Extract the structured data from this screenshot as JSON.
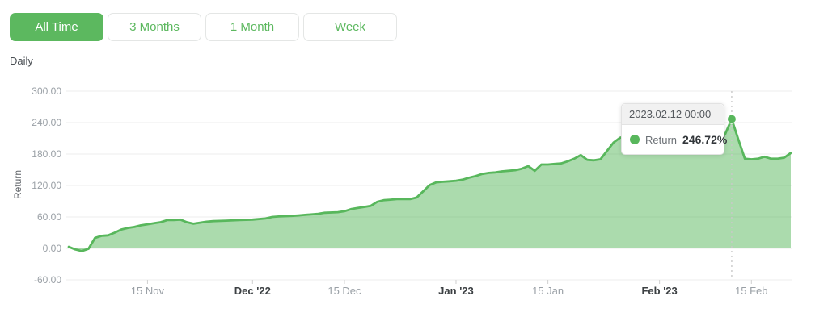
{
  "time_range_tabs": [
    {
      "label": "All Time",
      "active": true
    },
    {
      "label": "3 Months",
      "active": false
    },
    {
      "label": "1 Month",
      "active": false
    },
    {
      "label": "Week",
      "active": false
    }
  ],
  "frequency_label": "Daily",
  "tooltip": {
    "header": "2023.02.12 00:00",
    "series_label": "Return",
    "value": "246.72%"
  },
  "colors": {
    "accent": "#5cb85f",
    "line": "#58b75c",
    "fill": "rgba(88,183,92,0.5)",
    "grid": "#ececec",
    "tick": "#d0d0d0",
    "crosshair": "#c9c9c9",
    "axis_text": "#9aa0a6",
    "axis_text_emphasis": "#3c4043"
  },
  "chart_data": {
    "type": "area",
    "title": "",
    "xlabel": "",
    "ylabel": "Return",
    "series_name": "Return",
    "unit": "%",
    "frequency": "Daily",
    "start_date": "2022-11-03",
    "end_date": "2023-02-21",
    "x_unit": "day_offset_from_start_date",
    "x_range_days": 110,
    "ylim": [
      -60,
      300
    ],
    "grid": "horizontal",
    "legend": "none",
    "y_ticks": [
      {
        "value": 300,
        "label": "300.00"
      },
      {
        "value": 240,
        "label": "240.00"
      },
      {
        "value": 180,
        "label": "180.00"
      },
      {
        "value": 120,
        "label": "120.00"
      },
      {
        "value": 60,
        "label": "60.00"
      },
      {
        "value": 0,
        "label": "0.00"
      },
      {
        "value": -60,
        "label": "-60.00"
      }
    ],
    "x_axis_labels": [
      {
        "label": "15 Nov",
        "day": 12,
        "emphasis": false
      },
      {
        "label": "Dec '22",
        "day": 28,
        "emphasis": true
      },
      {
        "label": "15 Dec",
        "day": 42,
        "emphasis": false
      },
      {
        "label": "Jan '23",
        "day": 59,
        "emphasis": true
      },
      {
        "label": "15 Jan",
        "day": 73,
        "emphasis": false
      },
      {
        "label": "Feb '23",
        "day": 90,
        "emphasis": true
      },
      {
        "label": "15 Feb",
        "day": 104,
        "emphasis": false
      }
    ],
    "points": [
      [
        0,
        3
      ],
      [
        1,
        -2
      ],
      [
        2,
        -5
      ],
      [
        3,
        -1
      ],
      [
        4,
        20
      ],
      [
        5,
        24
      ],
      [
        6,
        25
      ],
      [
        7,
        30
      ],
      [
        8,
        36
      ],
      [
        9,
        39
      ],
      [
        10,
        41
      ],
      [
        11,
        44
      ],
      [
        12,
        46
      ],
      [
        13,
        48
      ],
      [
        14,
        50
      ],
      [
        15,
        54
      ],
      [
        16,
        54
      ],
      [
        17,
        55
      ],
      [
        18,
        50
      ],
      [
        19,
        47
      ],
      [
        20,
        49
      ],
      [
        21,
        51
      ],
      [
        22,
        52
      ],
      [
        24,
        53
      ],
      [
        26,
        54
      ],
      [
        28,
        55
      ],
      [
        30,
        57
      ],
      [
        31,
        60
      ],
      [
        32,
        61
      ],
      [
        34,
        62
      ],
      [
        35,
        63
      ],
      [
        36,
        64
      ],
      [
        38,
        66
      ],
      [
        39,
        68
      ],
      [
        41,
        69
      ],
      [
        42,
        71
      ],
      [
        43,
        75
      ],
      [
        44,
        77
      ],
      [
        45,
        79
      ],
      [
        46,
        81
      ],
      [
        47,
        89
      ],
      [
        48,
        92
      ],
      [
        49,
        93
      ],
      [
        50,
        94
      ],
      [
        52,
        94
      ],
      [
        53,
        97
      ],
      [
        54,
        109
      ],
      [
        55,
        121
      ],
      [
        56,
        126
      ],
      [
        57,
        127
      ],
      [
        58,
        128
      ],
      [
        59,
        129
      ],
      [
        60,
        131
      ],
      [
        61,
        135
      ],
      [
        62,
        138
      ],
      [
        63,
        142
      ],
      [
        64,
        144
      ],
      [
        65,
        145
      ],
      [
        66,
        147
      ],
      [
        67,
        148
      ],
      [
        68,
        149
      ],
      [
        69,
        152
      ],
      [
        70,
        157
      ],
      [
        71,
        148
      ],
      [
        72,
        160
      ],
      [
        73,
        160
      ],
      [
        74,
        161
      ],
      [
        75,
        162
      ],
      [
        76,
        166
      ],
      [
        77,
        171
      ],
      [
        78,
        178
      ],
      [
        79,
        169
      ],
      [
        80,
        168
      ],
      [
        81,
        170
      ],
      [
        82,
        186
      ],
      [
        83,
        202
      ],
      [
        84,
        211
      ],
      [
        85,
        214
      ],
      [
        86,
        215
      ],
      [
        88,
        214
      ],
      [
        90,
        216
      ],
      [
        92,
        215
      ],
      [
        94,
        216
      ],
      [
        96,
        217
      ],
      [
        98,
        216
      ],
      [
        100,
        218
      ],
      [
        101,
        246.72
      ],
      [
        102,
        208
      ],
      [
        103,
        171
      ],
      [
        104,
        170
      ],
      [
        105,
        171
      ],
      [
        106,
        175
      ],
      [
        107,
        171
      ],
      [
        108,
        171
      ],
      [
        109,
        173
      ],
      [
        110,
        182
      ]
    ],
    "highlight": {
      "day": 101,
      "value": 246.72,
      "date_label": "2023.02.12 00:00"
    }
  }
}
